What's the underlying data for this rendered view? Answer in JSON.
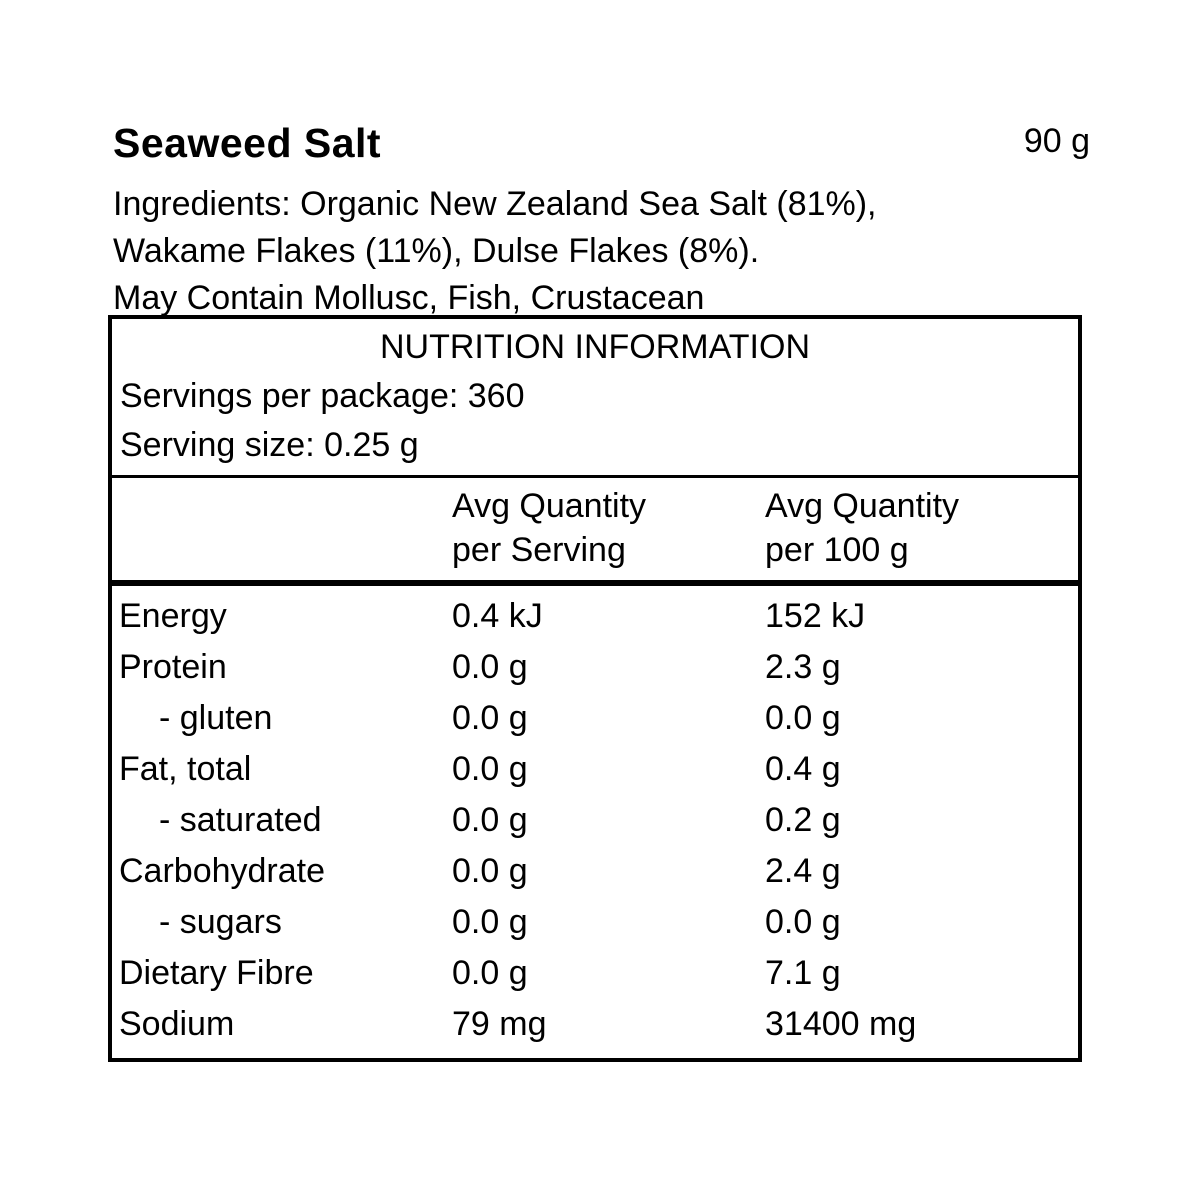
{
  "page": {
    "title": "Seaweed Salt",
    "net_weight": "90 g",
    "ingredients_lines": [
      "Ingredients: Organic New Zealand Sea Salt (81%),",
      "Wakame Flakes (11%), Dulse Flakes (8%).",
      "May Contain Mollusc, Fish, Crustacean"
    ]
  },
  "nutrition_panel": {
    "title": "NUTRITION INFORMATION",
    "servings_per_package": "Servings per package: 360",
    "serving_size": "Serving size: 0.25 g",
    "columns": {
      "per_serving_line1": "Avg Quantity",
      "per_serving_line2": "per Serving",
      "per_100g_line1": "Avg Quantity",
      "per_100g_line2": "per 100 g"
    },
    "rows": [
      {
        "nutrient": "Energy",
        "per_serving": "0.4 kJ",
        "per_100g": "152 kJ"
      },
      {
        "nutrient": "Protein",
        "per_serving": "0.0 g",
        "per_100g": "2.3 g"
      },
      {
        "nutrient": "- gluten",
        "per_serving": "0.0 g",
        "per_100g": "0.0 g"
      },
      {
        "nutrient": "Fat, total",
        "per_serving": "0.0 g",
        "per_100g": "0.4 g"
      },
      {
        "nutrient": "- saturated",
        "per_serving": "0.0 g",
        "per_100g": "0.2 g"
      },
      {
        "nutrient": "Carbohydrate",
        "per_serving": "0.0 g",
        "per_100g": "2.4 g"
      },
      {
        "nutrient": "- sugars",
        "per_serving": "0.0 g",
        "per_100g": "0.0 g"
      },
      {
        "nutrient": "Dietary Fibre",
        "per_serving": "0.0 g",
        "per_100g": "7.1 g"
      },
      {
        "nutrient": "Sodium",
        "per_serving": "79 mg",
        "per_100g": "31400 mg"
      }
    ]
  },
  "colors": {
    "text": "#000000",
    "border": "#000000",
    "background": "#ffffff"
  }
}
